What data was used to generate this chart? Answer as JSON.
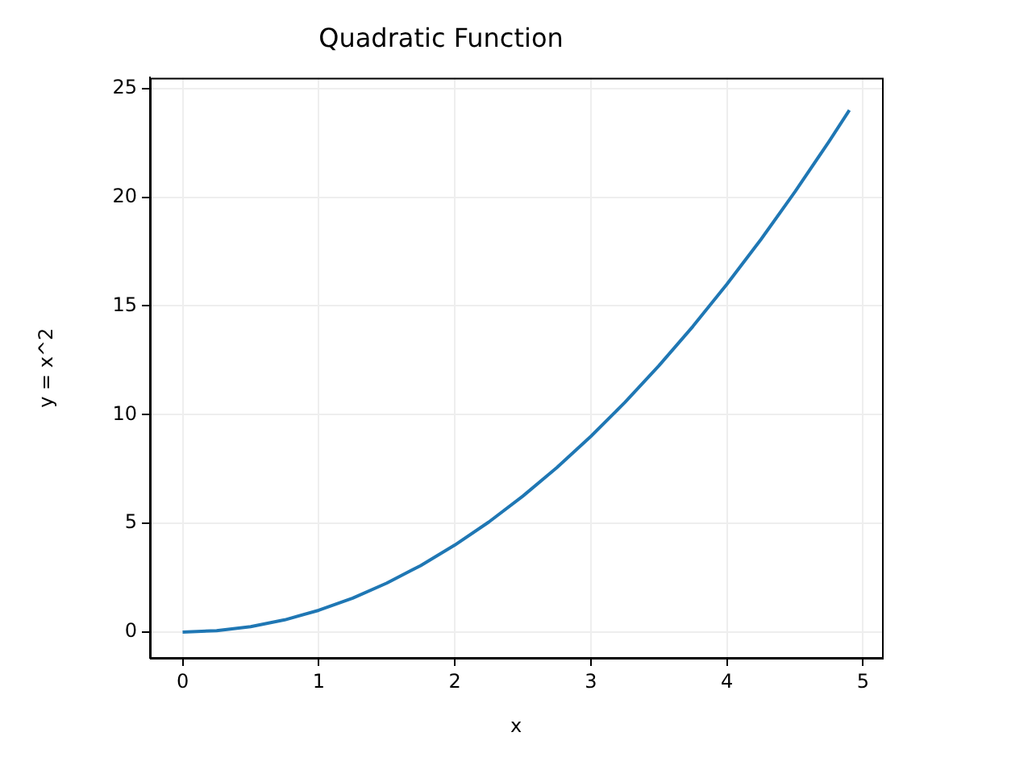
{
  "chart_data": {
    "type": "line",
    "title": "Quadratic Function",
    "xlabel": "x",
    "ylabel": "y = x^2",
    "x": [
      0,
      0.25,
      0.5,
      0.75,
      1,
      1.25,
      1.5,
      1.75,
      2,
      2.25,
      2.5,
      2.75,
      3,
      3.25,
      3.5,
      3.75,
      4,
      4.25,
      4.5,
      4.75,
      4.9
    ],
    "series": [
      {
        "color": "#1f77b4",
        "values": [
          0,
          0.06,
          0.25,
          0.56,
          1,
          1.56,
          2.25,
          3.06,
          4,
          5.06,
          6.25,
          7.56,
          9,
          10.56,
          12.25,
          14.06,
          16,
          18.06,
          20.25,
          22.56,
          24.01
        ]
      }
    ],
    "xlim": [
      -0.24,
      5.14
    ],
    "ylim": [
      -1.19,
      25.5
    ],
    "xticks": [
      0,
      1,
      2,
      3,
      4,
      5
    ],
    "yticks": [
      0,
      5,
      10,
      15,
      20,
      25
    ],
    "grid": true,
    "legend": false,
    "marker": "none",
    "line_style": "solid"
  }
}
